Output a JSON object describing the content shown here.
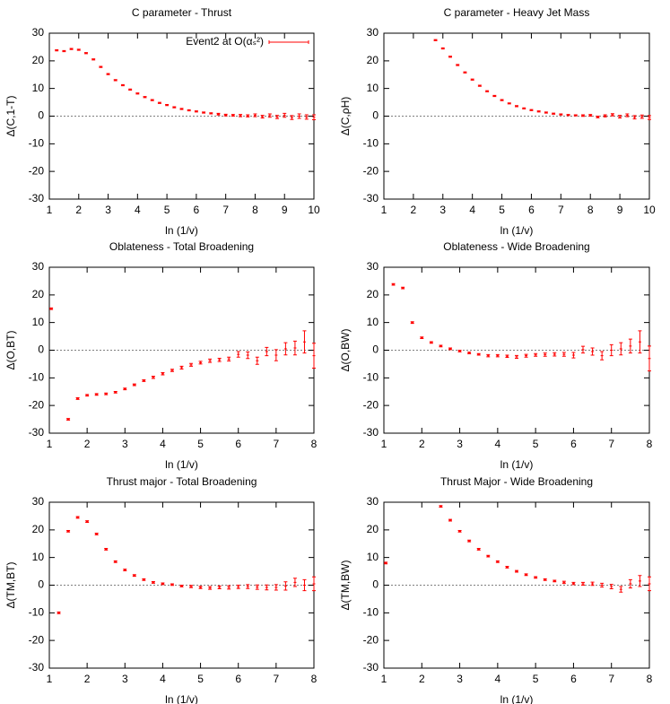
{
  "chart_data": [
    {
      "type": "scatter",
      "title": "C parameter - Thrust",
      "xlabel": "ln (1/v)",
      "ylabel": "Δ(C,1-T)",
      "xlim": [
        1,
        10
      ],
      "xticks": [
        1,
        2,
        3,
        4,
        5,
        6,
        7,
        8,
        9,
        10
      ],
      "ylim": [
        -30,
        30
      ],
      "yticks": [
        -30,
        -20,
        -10,
        0,
        10,
        20,
        30
      ],
      "reference_line": 0,
      "series": [
        {
          "name": "Event2 at O(αₛ²)",
          "color": "#ff0000",
          "x": [
            1.25,
            1.5,
            1.75,
            2,
            2.25,
            2.5,
            2.75,
            3,
            3.25,
            3.5,
            3.75,
            4,
            4.25,
            4.5,
            4.75,
            5,
            5.25,
            5.5,
            5.75,
            6,
            6.25,
            6.5,
            6.75,
            7,
            7.25,
            7.5,
            7.75,
            8,
            8.25,
            8.5,
            8.75,
            9,
            9.25,
            9.5,
            9.75,
            10
          ],
          "values": [
            23.8,
            23.5,
            24.3,
            24,
            22.8,
            20.5,
            17.8,
            15.2,
            13,
            11.2,
            9.6,
            8.2,
            6.9,
            5.8,
            4.8,
            4,
            3.2,
            2.6,
            2.1,
            1.7,
            1.3,
            1,
            0.7,
            0.4,
            0.3,
            0.2,
            0.1,
            0.3,
            -0.2,
            0.2,
            -0.3,
            0.3,
            -0.5,
            0,
            -0.3,
            -0.4
          ],
          "errors": [
            0.2,
            0.2,
            0.2,
            0.2,
            0.2,
            0.2,
            0.2,
            0.2,
            0.2,
            0.2,
            0.2,
            0.2,
            0.2,
            0.2,
            0.2,
            0.2,
            0.2,
            0.2,
            0.2,
            0.2,
            0.2,
            0.2,
            0.3,
            0.3,
            0.3,
            0.4,
            0.4,
            0.5,
            0.5,
            0.6,
            0.6,
            0.7,
            0.7,
            0.8,
            0.8,
            0.9
          ]
        }
      ]
    },
    {
      "type": "scatter",
      "title": "C parameter - Heavy Jet Mass",
      "xlabel": "ln (1/v)",
      "ylabel": "Δ(C,ρH)",
      "xlim": [
        1,
        10
      ],
      "xticks": [
        1,
        2,
        3,
        4,
        5,
        6,
        7,
        8,
        9,
        10
      ],
      "ylim": [
        -30,
        30
      ],
      "yticks": [
        -30,
        -20,
        -10,
        0,
        10,
        20,
        30
      ],
      "reference_line": 0,
      "series": [
        {
          "color": "#ff0000",
          "x": [
            2.75,
            3,
            3.25,
            3.5,
            3.75,
            4,
            4.25,
            4.5,
            4.75,
            5,
            5.25,
            5.5,
            5.75,
            6,
            6.25,
            6.5,
            6.75,
            7,
            7.25,
            7.5,
            7.75,
            8,
            8.25,
            8.5,
            8.75,
            9,
            9.25,
            9.5,
            9.75,
            10
          ],
          "values": [
            27.5,
            24.5,
            21.5,
            18.5,
            15.8,
            13.2,
            11,
            9,
            7.3,
            5.8,
            4.6,
            3.6,
            2.8,
            2.2,
            1.7,
            1.3,
            0.9,
            0.6,
            0.4,
            0.3,
            0.2,
            0.3,
            -0.3,
            0.1,
            0.5,
            -0.2,
            0.3,
            -0.4,
            -0.2,
            -0.5
          ],
          "errors": [
            0.2,
            0.2,
            0.2,
            0.2,
            0.2,
            0.2,
            0.2,
            0.2,
            0.2,
            0.2,
            0.2,
            0.2,
            0.2,
            0.2,
            0.2,
            0.2,
            0.2,
            0.2,
            0.2,
            0.2,
            0.3,
            0.3,
            0.3,
            0.4,
            0.4,
            0.5,
            0.5,
            0.6,
            0.6,
            0.7
          ]
        }
      ]
    },
    {
      "type": "scatter",
      "title": "Oblateness - Total Broadening",
      "xlabel": "ln (1/v)",
      "ylabel": "Δ(O,BT)",
      "xlim": [
        1,
        8
      ],
      "xticks": [
        1,
        2,
        3,
        4,
        5,
        6,
        7,
        8
      ],
      "ylim": [
        -30,
        30
      ],
      "yticks": [
        -30,
        -20,
        -10,
        0,
        10,
        20,
        30
      ],
      "reference_line": 0,
      "series": [
        {
          "color": "#ff0000",
          "x": [
            1.05,
            1.5,
            1.75,
            2,
            2.25,
            2.5,
            2.75,
            3,
            3.25,
            3.5,
            3.75,
            4,
            4.25,
            4.5,
            4.75,
            5,
            5.25,
            5.5,
            5.75,
            6,
            6.25,
            6.5,
            6.75,
            7,
            7.25,
            7.5,
            7.75,
            8
          ],
          "values": [
            15,
            -25,
            -17.5,
            -16.3,
            -16,
            -15.8,
            -15.2,
            -14,
            -12.5,
            -11,
            -9.8,
            -8.5,
            -7.3,
            -6.3,
            -5.3,
            -4.5,
            -3.8,
            -3.5,
            -3.2,
            -1.5,
            -1.8,
            -3.8,
            -0.5,
            -1.8,
            0.5,
            0.8,
            3,
            -2
          ],
          "errors": [
            0.3,
            0.3,
            0.3,
            0.3,
            0.3,
            0.3,
            0.3,
            0.3,
            0.3,
            0.3,
            0.4,
            0.4,
            0.4,
            0.5,
            0.5,
            0.5,
            0.6,
            0.6,
            0.7,
            1,
            1.2,
            1.3,
            1.5,
            2,
            2.2,
            2.5,
            4,
            4.5
          ]
        }
      ]
    },
    {
      "type": "scatter",
      "title": "Oblateness - Wide Broadening",
      "xlabel": "ln (1/v)",
      "ylabel": "Δ(O,BW)",
      "xlim": [
        1,
        8
      ],
      "xticks": [
        1,
        2,
        3,
        4,
        5,
        6,
        7,
        8
      ],
      "ylim": [
        -30,
        30
      ],
      "yticks": [
        -30,
        -20,
        -10,
        0,
        10,
        20,
        30
      ],
      "reference_line": 0,
      "series": [
        {
          "color": "#ff0000",
          "x": [
            1.25,
            1.5,
            1.75,
            2,
            2.25,
            2.5,
            2.75,
            3,
            3.25,
            3.5,
            3.75,
            4,
            4.25,
            4.5,
            4.75,
            5,
            5.25,
            5.5,
            5.75,
            6,
            6.25,
            6.5,
            6.75,
            7,
            7.25,
            7.5,
            7.75,
            8
          ],
          "values": [
            23.8,
            22.5,
            10,
            4.5,
            2.8,
            1.5,
            0.5,
            -0.3,
            -1,
            -1.5,
            -2,
            -2,
            -2.2,
            -2.4,
            -2,
            -1.7,
            -1.6,
            -1.5,
            -1.5,
            -1.8,
            0.2,
            -0.5,
            -2,
            0,
            0.5,
            1.5,
            3,
            -3
          ],
          "errors": [
            0.3,
            0.3,
            0.3,
            0.3,
            0.3,
            0.3,
            0.3,
            0.3,
            0.3,
            0.3,
            0.4,
            0.4,
            0.4,
            0.5,
            0.5,
            0.5,
            0.6,
            0.6,
            0.7,
            1,
            1.2,
            1.3,
            1.5,
            2,
            2.2,
            2.5,
            4,
            4.5
          ]
        }
      ]
    },
    {
      "type": "scatter",
      "title": "Thrust major - Total Broadening",
      "xlabel": "ln (1/v)",
      "ylabel": "Δ(TM,BT)",
      "xlim": [
        1,
        8
      ],
      "xticks": [
        1,
        2,
        3,
        4,
        5,
        6,
        7,
        8
      ],
      "ylim": [
        -30,
        30
      ],
      "yticks": [
        -30,
        -20,
        -10,
        0,
        10,
        20,
        30
      ],
      "reference_line": 0,
      "series": [
        {
          "color": "#ff0000",
          "x": [
            1.25,
            1.5,
            1.75,
            2,
            2.25,
            2.5,
            2.75,
            3,
            3.25,
            3.5,
            3.75,
            4,
            4.25,
            4.5,
            4.75,
            5,
            5.25,
            5.5,
            5.75,
            6,
            6.25,
            6.5,
            6.75,
            7,
            7.25,
            7.5,
            7.75,
            8
          ],
          "values": [
            -10,
            19.5,
            24.5,
            23,
            18.5,
            13,
            8.5,
            5.5,
            3.5,
            2,
            1,
            0.5,
            0.2,
            -0.3,
            -0.5,
            -0.8,
            -1,
            -0.8,
            -0.8,
            -0.6,
            -0.5,
            -0.7,
            -0.8,
            -0.8,
            -0.3,
            1,
            0,
            0.5
          ],
          "errors": [
            0.3,
            0.3,
            0.3,
            0.3,
            0.3,
            0.3,
            0.3,
            0.3,
            0.3,
            0.3,
            0.3,
            0.3,
            0.3,
            0.3,
            0.4,
            0.4,
            0.5,
            0.5,
            0.6,
            0.6,
            0.7,
            0.8,
            0.9,
            1,
            1.5,
            1.5,
            2,
            2.5
          ]
        }
      ]
    },
    {
      "type": "scatter",
      "title": "Thrust Major - Wide Broadening",
      "xlabel": "ln (1/v)",
      "ylabel": "Δ(TM,BW)",
      "xlim": [
        1,
        8
      ],
      "xticks": [
        1,
        2,
        3,
        4,
        5,
        6,
        7,
        8
      ],
      "ylim": [
        -30,
        30
      ],
      "yticks": [
        -30,
        -20,
        -10,
        0,
        10,
        20,
        30
      ],
      "reference_line": 0,
      "series": [
        {
          "color": "#ff0000",
          "x": [
            1.05,
            2.5,
            2.75,
            3,
            3.25,
            3.5,
            3.75,
            4,
            4.25,
            4.5,
            4.75,
            5,
            5.25,
            5.5,
            5.75,
            6,
            6.25,
            6.5,
            6.75,
            7,
            7.25,
            7.5,
            7.75,
            8
          ],
          "values": [
            8,
            28.5,
            23.5,
            19.5,
            16,
            13,
            10.5,
            8.5,
            6.5,
            5,
            3.8,
            2.8,
            2,
            1.5,
            1,
            0.6,
            0.5,
            0.5,
            0,
            -0.5,
            -1.5,
            0.5,
            1.5,
            0.5
          ],
          "errors": [
            0.3,
            0.3,
            0.3,
            0.3,
            0.3,
            0.3,
            0.3,
            0.3,
            0.3,
            0.3,
            0.3,
            0.3,
            0.3,
            0.3,
            0.4,
            0.4,
            0.5,
            0.6,
            0.7,
            0.8,
            1,
            1.5,
            2,
            2.5
          ]
        }
      ]
    }
  ]
}
